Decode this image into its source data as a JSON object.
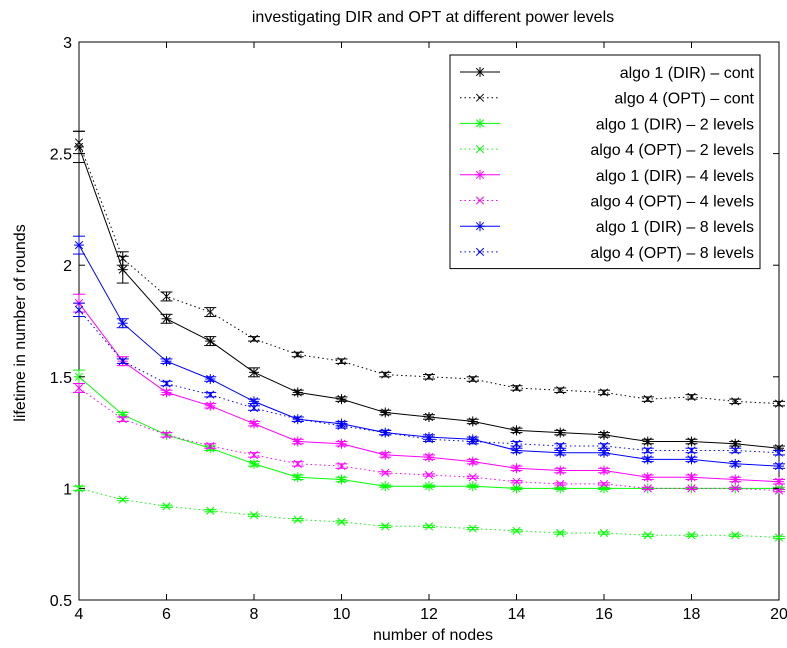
{
  "chart_data": {
    "type": "line",
    "title": "investigating DIR and OPT at different power levels",
    "xlabel": "number of nodes",
    "ylabel": "lifetime in number of rounds",
    "xlim": [
      4,
      20
    ],
    "ylim": [
      0.5,
      3
    ],
    "x_ticks": [
      "4",
      "6",
      "8",
      "10",
      "12",
      "14",
      "16",
      "18",
      "20"
    ],
    "y_ticks": [
      "0.5",
      "1",
      "1.5",
      "2",
      "2.5",
      "3"
    ],
    "grid": false,
    "legend_position": "top-right",
    "x": [
      4,
      5,
      6,
      7,
      8,
      9,
      10,
      11,
      12,
      13,
      14,
      15,
      16,
      17,
      18,
      19,
      20
    ],
    "series": [
      {
        "name": "algo 1 (DIR) – cont",
        "color": "#000000",
        "line": "solid",
        "marker": "*",
        "values": [
          2.53,
          1.98,
          1.76,
          1.66,
          1.52,
          1.43,
          1.4,
          1.34,
          1.32,
          1.3,
          1.26,
          1.25,
          1.24,
          1.21,
          1.21,
          1.2,
          1.18
        ],
        "errors": [
          0.07,
          0.06,
          0.02,
          0.02,
          0.02,
          0.01,
          0.01,
          0.01,
          0.01,
          0.01,
          0.01,
          0.01,
          0.01,
          0.01,
          0.01,
          0.01,
          0.01
        ]
      },
      {
        "name": "algo 4 (OPT) – cont",
        "color": "#000000",
        "line": "dotted",
        "marker": "x",
        "values": [
          2.55,
          2.03,
          1.86,
          1.79,
          1.67,
          1.6,
          1.57,
          1.51,
          1.5,
          1.49,
          1.45,
          1.44,
          1.43,
          1.4,
          1.41,
          1.39,
          1.38
        ],
        "errors": [
          0.05,
          0.03,
          0.02,
          0.02,
          0.01,
          0.01,
          0.01,
          0.01,
          0.01,
          0.01,
          0.01,
          0.01,
          0.01,
          0.01,
          0.01,
          0.01,
          0.01
        ]
      },
      {
        "name": "algo 1 (DIR) – 2 levels",
        "color": "#00ff00",
        "line": "solid",
        "marker": "*",
        "values": [
          1.5,
          1.33,
          1.24,
          1.18,
          1.11,
          1.05,
          1.04,
          1.01,
          1.01,
          1.01,
          1.0,
          1.0,
          1.0,
          1.0,
          1.0,
          1.0,
          1.0
        ],
        "errors": [
          0.03,
          0.01,
          0.01,
          0.01,
          0.01,
          0.01,
          0.01,
          0.005,
          0.005,
          0.005,
          0.005,
          0.005,
          0.005,
          0.005,
          0.005,
          0.005,
          0.005
        ]
      },
      {
        "name": "algo 4 (OPT) – 2 levels",
        "color": "#00ff00",
        "line": "dotted",
        "marker": "x",
        "values": [
          1.0,
          0.95,
          0.92,
          0.9,
          0.88,
          0.86,
          0.85,
          0.83,
          0.83,
          0.82,
          0.81,
          0.8,
          0.8,
          0.79,
          0.79,
          0.79,
          0.78
        ],
        "errors": [
          0.01,
          0.005,
          0.005,
          0.005,
          0.005,
          0.005,
          0.005,
          0.005,
          0.005,
          0.005,
          0.005,
          0.005,
          0.005,
          0.005,
          0.005,
          0.005,
          0.005
        ]
      },
      {
        "name": "algo 1 (DIR) – 4 levels",
        "color": "#ff00ff",
        "line": "solid",
        "marker": "*",
        "values": [
          1.83,
          1.57,
          1.43,
          1.37,
          1.29,
          1.21,
          1.2,
          1.15,
          1.14,
          1.12,
          1.09,
          1.08,
          1.08,
          1.05,
          1.05,
          1.04,
          1.03
        ],
        "errors": [
          0.04,
          0.02,
          0.01,
          0.01,
          0.01,
          0.01,
          0.01,
          0.01,
          0.01,
          0.01,
          0.01,
          0.01,
          0.01,
          0.01,
          0.01,
          0.01,
          0.01
        ]
      },
      {
        "name": "algo 4 (OPT) – 4 levels",
        "color": "#ff00ff",
        "line": "dotted",
        "marker": "x",
        "values": [
          1.45,
          1.31,
          1.24,
          1.19,
          1.15,
          1.11,
          1.1,
          1.07,
          1.06,
          1.05,
          1.03,
          1.02,
          1.02,
          1.0,
          1.0,
          1.0,
          0.99
        ],
        "errors": [
          0.02,
          0.01,
          0.01,
          0.01,
          0.01,
          0.01,
          0.01,
          0.005,
          0.005,
          0.005,
          0.005,
          0.005,
          0.005,
          0.005,
          0.005,
          0.005,
          0.005
        ]
      },
      {
        "name": "algo 1 (DIR) – 8 levels",
        "color": "#0000ff",
        "line": "solid",
        "marker": "*",
        "values": [
          2.09,
          1.74,
          1.57,
          1.49,
          1.39,
          1.31,
          1.29,
          1.25,
          1.23,
          1.22,
          1.17,
          1.16,
          1.16,
          1.13,
          1.13,
          1.11,
          1.1
        ],
        "errors": [
          0.04,
          0.02,
          0.01,
          0.01,
          0.01,
          0.01,
          0.01,
          0.01,
          0.01,
          0.01,
          0.01,
          0.01,
          0.01,
          0.01,
          0.01,
          0.01,
          0.01
        ]
      },
      {
        "name": "algo 4 (OPT) – 8 levels",
        "color": "#0000ff",
        "line": "dotted",
        "marker": "x",
        "values": [
          1.8,
          1.57,
          1.47,
          1.42,
          1.36,
          1.31,
          1.28,
          1.25,
          1.22,
          1.21,
          1.2,
          1.19,
          1.19,
          1.17,
          1.17,
          1.17,
          1.16
        ],
        "errors": [
          0.03,
          0.01,
          0.01,
          0.01,
          0.01,
          0.01,
          0.01,
          0.01,
          0.01,
          0.01,
          0.01,
          0.01,
          0.01,
          0.01,
          0.01,
          0.01,
          0.01
        ]
      }
    ]
  }
}
